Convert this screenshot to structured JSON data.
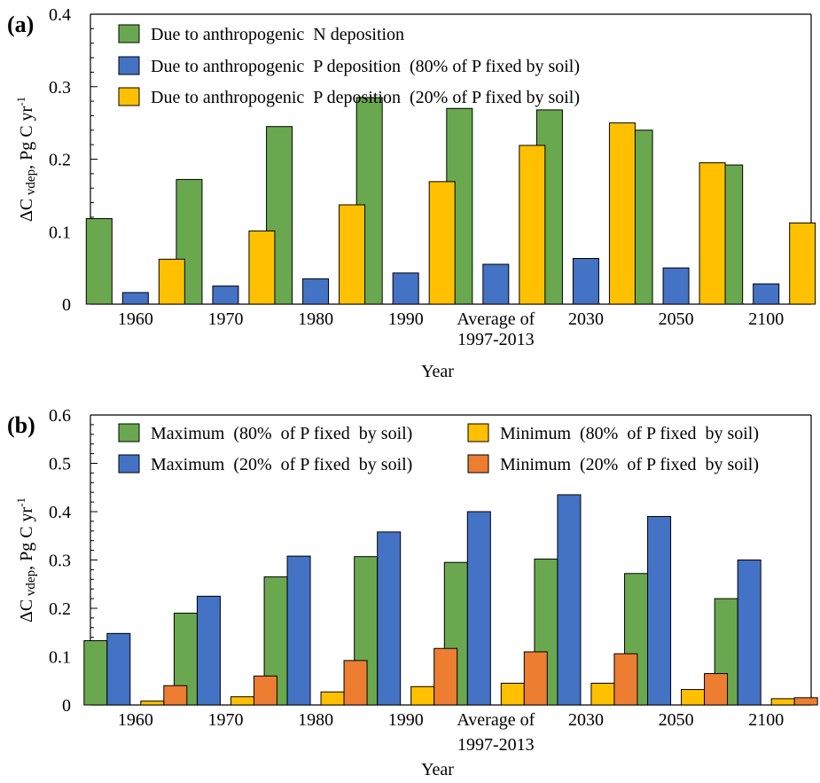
{
  "chart_data": [
    {
      "type": "bar",
      "panel_label": "(a)",
      "xlabel": "Year",
      "ylabel": "ΔC vdep, Pg C yr-1",
      "ylabel_parts": [
        "ΔC",
        " vdep",
        ", Pg C yr",
        "-1"
      ],
      "ylim": [
        0,
        0.4
      ],
      "yticks": [
        0,
        0.1,
        0.2,
        0.3,
        0.4
      ],
      "ytick_labels": [
        "0",
        "0.1",
        "0.2",
        "0.3",
        "0.4"
      ],
      "grid": false,
      "legend_position": "top-left",
      "categories": [
        "1960",
        "1970",
        "1980",
        "1990",
        "Average of\n1997-2013",
        "2030",
        "2050",
        "2100"
      ],
      "series": [
        {
          "name": "Due to anthropogenic  N deposition",
          "color": "#6aa84f",
          "values": [
            0.118,
            0.172,
            0.245,
            0.285,
            0.27,
            0.268,
            0.24,
            0.192
          ]
        },
        {
          "name": "Due to anthropogenic  P deposition  (80% of P fixed by soil)",
          "color": "#4472c4",
          "values": [
            0.016,
            0.025,
            0.035,
            0.043,
            0.055,
            0.063,
            0.05,
            0.028
          ]
        },
        {
          "name": "Due to anthropogenic  P deposition  (20% of P fixed by soil)",
          "color": "#ffc000",
          "values": [
            0.062,
            0.101,
            0.137,
            0.169,
            0.219,
            0.25,
            0.195,
            0.112
          ]
        }
      ]
    },
    {
      "type": "bar",
      "panel_label": "(b)",
      "xlabel": "Year",
      "ylabel": "ΔC vdep, Pg C yr-1",
      "ylabel_parts": [
        "ΔC",
        " vdep",
        ", Pg C yr",
        "-1"
      ],
      "ylim": [
        0,
        0.6
      ],
      "yticks": [
        0,
        0.1,
        0.2,
        0.3,
        0.4,
        0.5,
        0.6
      ],
      "ytick_labels": [
        "0",
        "0.1",
        "0.2",
        "0.3",
        "0.4",
        "0.5",
        "0.6"
      ],
      "grid": false,
      "legend_position": "top",
      "categories": [
        "1960",
        "1970",
        "1980",
        "1990",
        "Average of\n1997-2013",
        "2030",
        "2050",
        "2100"
      ],
      "series": [
        {
          "name": "Maximum  (80%  of P fixed  by soil)",
          "color": "#6aa84f",
          "values": [
            0.133,
            0.19,
            0.265,
            0.307,
            0.295,
            0.302,
            0.272,
            0.22
          ]
        },
        {
          "name": "Maximum  (20%  of P fixed  by soil)",
          "color": "#4472c4",
          "values": [
            0.148,
            0.225,
            0.308,
            0.358,
            0.4,
            0.435,
            0.39,
            0.3
          ]
        },
        {
          "name": "Minimum  (80%  of P fixed  by soil)",
          "color": "#ffc000",
          "values": [
            0.008,
            0.017,
            0.027,
            0.038,
            0.045,
            0.045,
            0.032,
            0.013
          ]
        },
        {
          "name": "Minimum  (20%  of P fixed  by soil)",
          "color": "#ed7d31",
          "values": [
            0.04,
            0.06,
            0.092,
            0.117,
            0.11,
            0.106,
            0.065,
            0.015
          ]
        }
      ]
    }
  ]
}
